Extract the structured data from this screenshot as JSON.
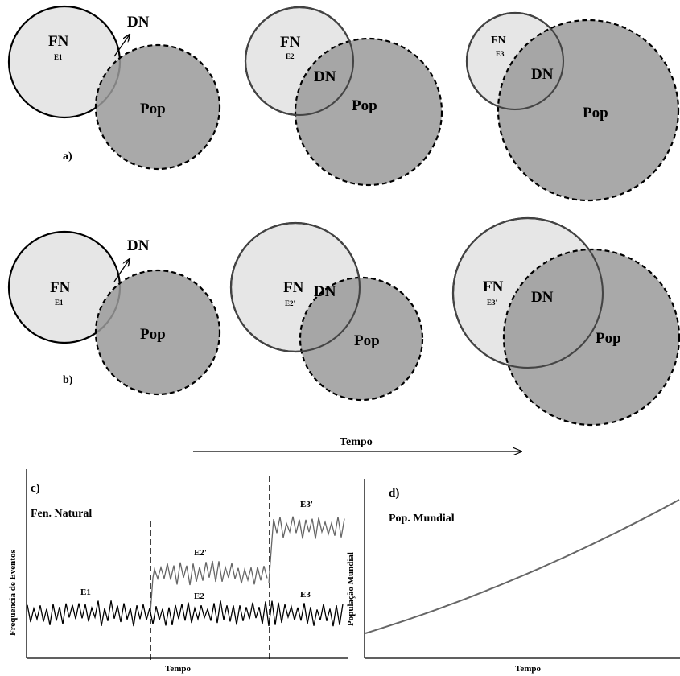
{
  "diagram": {
    "labels": {
      "fn": "FN",
      "dn": "DN",
      "pop": "Pop",
      "row_a": "a)",
      "row_b": "b)",
      "time": "Tempo"
    },
    "row_a_events": [
      "E1",
      "E2",
      "E3"
    ],
    "row_b_events": [
      "E1",
      "E2'",
      "E3'"
    ],
    "colors": {
      "fn_fill": "#e6e6e6",
      "pop_fill": "#9a9a9a",
      "overlap_fill": "#8a8a8a"
    }
  },
  "chart_data": [
    {
      "type": "line",
      "panel_label": "c)",
      "title": "Fen. Natural",
      "xlabel": "Tempo",
      "ylabel": "Frequencia de Eventos",
      "segment_labels": [
        "E1",
        "E2'",
        "E2",
        "E3'",
        "E3"
      ],
      "series": [
        {
          "name": "E1 / E2 / E3",
          "level": "low",
          "regimes": [
            "E1",
            "E2",
            "E3"
          ]
        },
        {
          "name": "E2'",
          "level": "medium",
          "regimes": [
            "E2'"
          ]
        },
        {
          "name": "E3'",
          "level": "high",
          "regimes": [
            "E3'"
          ]
        }
      ],
      "dashed_breaks": 2
    },
    {
      "type": "line",
      "panel_label": "d)",
      "title": "Pop. Mundial",
      "xlabel": "Tempo",
      "ylabel": "População Mundial",
      "trend": "increasing"
    }
  ]
}
